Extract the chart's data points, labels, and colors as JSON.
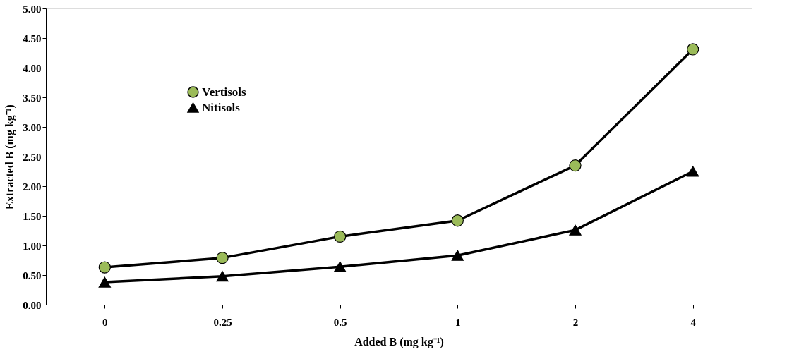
{
  "chart_data": {
    "type": "line",
    "xlabel": "Added B (mg kg⁻¹)",
    "ylabel": "Extracted B (mg kg⁻¹)",
    "categories": [
      "0",
      "0.25",
      "0.5",
      "1",
      "2",
      "4"
    ],
    "series": [
      {
        "name": "Vertisols",
        "color": "#9bbb59",
        "marker": "circle",
        "values": [
          0.63,
          0.79,
          1.15,
          1.42,
          2.35,
          4.31
        ]
      },
      {
        "name": "Nitisols",
        "color": "#000000",
        "marker": "triangle",
        "values": [
          0.38,
          0.48,
          0.64,
          0.83,
          1.26,
          2.25
        ]
      }
    ],
    "ylim": [
      0,
      5
    ],
    "yticks": [
      {
        "value": 0,
        "label": "0.00"
      },
      {
        "value": 0.5,
        "label": "0.50"
      },
      {
        "value": 1,
        "label": "1.00"
      },
      {
        "value": 1.5,
        "label": "1.50"
      },
      {
        "value": 2,
        "label": "2.00"
      },
      {
        "value": 2.5,
        "label": "2.50"
      },
      {
        "value": 3,
        "label": "3.00"
      },
      {
        "value": 3.5,
        "label": "3.50"
      },
      {
        "value": 4,
        "label": "4.00"
      },
      {
        "value": 4.5,
        "label": "4.50"
      },
      {
        "value": 5,
        "label": "5.00"
      }
    ],
    "grid": false,
    "legend": "top left",
    "line_style": "solid"
  }
}
